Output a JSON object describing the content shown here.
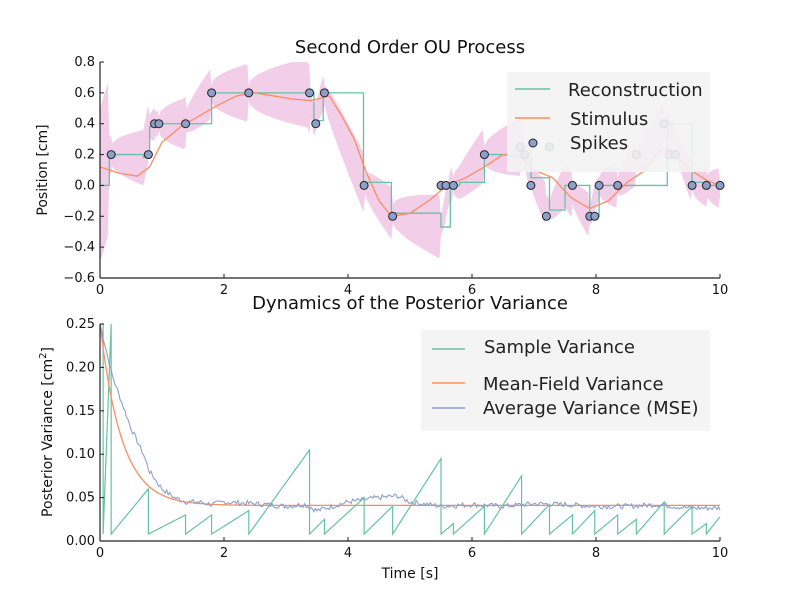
{
  "chart_data": [
    {
      "type": "line",
      "title": "Second Order OU Process",
      "xlabel": "",
      "ylabel": "Position [cm]",
      "xlim": [
        0,
        10
      ],
      "ylim": [
        -0.6,
        0.8
      ],
      "xticks": [
        "0",
        "2",
        "4",
        "6",
        "8",
        "10"
      ],
      "yticks": [
        "−0.6",
        "−0.4",
        "−0.2",
        "0.0",
        "0.2",
        "0.4",
        "0.6",
        "0.8"
      ],
      "legend": [
        "Reconstruction",
        "Stimulus",
        "Spikes"
      ],
      "legend_position": "upper-right",
      "colors": {
        "reconstruction": "#66c2a5",
        "stimulus": "#fc8d62",
        "spikes": "#8da0cb",
        "band": "#e7a6d6"
      },
      "series": [
        {
          "name": "Stimulus",
          "x": [
            0.0,
            0.3,
            0.6,
            0.8,
            1.0,
            1.3,
            1.6,
            1.9,
            2.2,
            2.5,
            2.8,
            3.1,
            3.4,
            3.7,
            3.9,
            4.1,
            4.3,
            4.5,
            4.7,
            5.0,
            5.3,
            5.6,
            5.9,
            6.2,
            6.5,
            6.8,
            7.0,
            7.3,
            7.6,
            7.9,
            8.2,
            8.5,
            8.8,
            9.0,
            9.2,
            9.4,
            9.6,
            9.8,
            10.0
          ],
          "values": [
            0.12,
            0.08,
            0.06,
            0.12,
            0.28,
            0.38,
            0.45,
            0.52,
            0.58,
            0.6,
            0.58,
            0.56,
            0.55,
            0.58,
            0.45,
            0.3,
            0.08,
            -0.1,
            -0.2,
            -0.18,
            -0.1,
            0.0,
            0.05,
            0.12,
            0.2,
            0.18,
            0.1,
            0.05,
            -0.08,
            -0.15,
            -0.1,
            0.02,
            0.1,
            0.22,
            0.24,
            0.15,
            0.08,
            0.03,
            0.0
          ]
        },
        {
          "name": "Reconstruction",
          "x": [
            0.0,
            0.15,
            0.7,
            0.8,
            0.9,
            1.35,
            1.8,
            2.4,
            3.35,
            3.45,
            3.6,
            4.25,
            4.7,
            5.5,
            5.65,
            5.8,
            6.2,
            6.8,
            6.95,
            7.25,
            7.5,
            7.9,
            8.05,
            8.35,
            9.15,
            9.55,
            9.75,
            10.0
          ],
          "values": [
            0.0,
            0.2,
            0.18,
            0.38,
            0.4,
            0.4,
            0.6,
            0.6,
            0.6,
            0.42,
            0.6,
            0.02,
            -0.18,
            -0.27,
            0.0,
            0.02,
            0.2,
            0.25,
            0.05,
            -0.16,
            0.0,
            -0.2,
            0.0,
            0.0,
            0.4,
            0.02,
            0.0,
            -0.02
          ]
        }
      ],
      "spikes": {
        "x": [
          0.18,
          0.78,
          0.88,
          0.95,
          1.38,
          1.8,
          2.4,
          3.38,
          3.48,
          3.62,
          4.26,
          4.72,
          5.5,
          5.58,
          5.7,
          6.2,
          6.78,
          6.85,
          6.95,
          7.2,
          7.25,
          7.62,
          7.9,
          7.98,
          8.05,
          8.35,
          8.65,
          9.1,
          9.18,
          9.28,
          9.55,
          9.78,
          10.0
        ],
        "values": [
          0.2,
          0.2,
          0.4,
          0.4,
          0.4,
          0.6,
          0.6,
          0.6,
          0.4,
          0.6,
          0.0,
          -0.2,
          0.0,
          0.0,
          0.0,
          0.2,
          0.25,
          0.2,
          0.0,
          -0.2,
          0.25,
          0.0,
          -0.2,
          -0.2,
          0.0,
          0.0,
          0.2,
          0.4,
          0.2,
          0.2,
          0.0,
          0.0,
          0.0
        ]
      }
    },
    {
      "type": "line",
      "title": "Dynamics of the Posterior Variance",
      "xlabel": "Time [s]",
      "ylabel": "Posterior Variance [cm",
      "ylabel_sup": "2",
      "ylabel_close": "]",
      "xlim": [
        0,
        10
      ],
      "ylim": [
        0,
        0.25
      ],
      "xticks": [
        "0",
        "2",
        "4",
        "6",
        "8",
        "10"
      ],
      "yticks": [
        "0.00",
        "0.05",
        "0.10",
        "0.15",
        "0.20",
        "0.25"
      ],
      "legend": [
        "Sample Variance",
        "Mean-Field Variance",
        "Average Variance (MSE)"
      ],
      "legend_position": "upper-right",
      "colors": {
        "sample": "#66c2a5",
        "meanfield": "#fc8d62",
        "mse": "#8da0cb"
      },
      "meanfield": {
        "start": 0.25,
        "steady": 0.041,
        "tau": 0.35
      },
      "sample_resets": {
        "t": [
          0.05,
          0.18,
          0.78,
          1.38,
          1.8,
          2.4,
          3.38,
          3.62,
          4.26,
          4.72,
          5.5,
          5.7,
          6.2,
          6.8,
          7.25,
          7.62,
          7.98,
          8.35,
          8.65,
          9.1,
          9.55,
          9.78
        ],
        "peak_before_reset": [
          0.25,
          0.25,
          0.06,
          0.03,
          0.03,
          0.035,
          0.105,
          0.025,
          0.05,
          0.04,
          0.095,
          0.02,
          0.04,
          0.075,
          0.042,
          0.03,
          0.035,
          0.03,
          0.025,
          0.045,
          0.04,
          0.02
        ]
      },
      "mse_samples": {
        "x": [
          0.0,
          0.1,
          0.2,
          0.3,
          0.4,
          0.5,
          0.6,
          0.7,
          0.8,
          0.9,
          1.0,
          1.2,
          1.4,
          1.6,
          1.8,
          2.0,
          2.5,
          3.0,
          3.3,
          3.5,
          4.0,
          4.5,
          4.8,
          5.0,
          5.5,
          6.0,
          6.5,
          7.0,
          7.5,
          8.0,
          8.5,
          9.0,
          9.5,
          10.0
        ],
        "values": [
          0.25,
          0.22,
          0.19,
          0.17,
          0.15,
          0.13,
          0.115,
          0.1,
          0.08,
          0.07,
          0.06,
          0.05,
          0.045,
          0.045,
          0.042,
          0.045,
          0.043,
          0.04,
          0.042,
          0.035,
          0.045,
          0.05,
          0.052,
          0.045,
          0.04,
          0.042,
          0.04,
          0.043,
          0.042,
          0.04,
          0.04,
          0.042,
          0.038,
          0.038
        ]
      }
    }
  ]
}
